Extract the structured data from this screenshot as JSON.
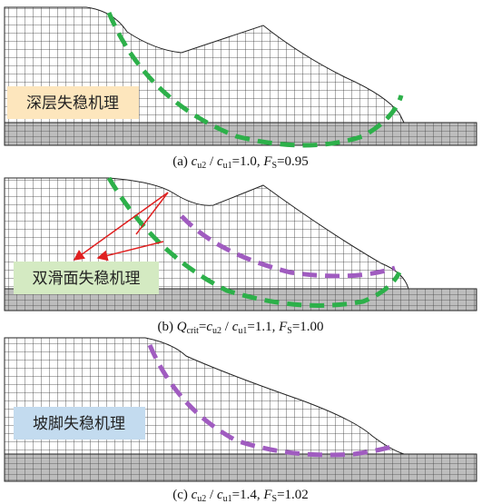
{
  "panels": [
    {
      "label": "深层失稳机理",
      "caption": [
        "(a) ",
        "c",
        "u2",
        " / ",
        "c",
        "u1",
        "=1.0, ",
        "F",
        "S",
        "=0.95"
      ]
    },
    {
      "label": "双滑面失稳机理",
      "caption": [
        "(b) ",
        "Q",
        "crit",
        "=",
        "c",
        "u2",
        " / ",
        "c",
        "u1",
        "=1.1, ",
        "F",
        "S",
        "=1.00"
      ]
    },
    {
      "label": "坡脚失稳机理",
      "caption": [
        "(c) ",
        "c",
        "u2",
        " / ",
        "c",
        "u1",
        "=1.4, ",
        "F",
        "S",
        "=1.02"
      ]
    }
  ]
}
